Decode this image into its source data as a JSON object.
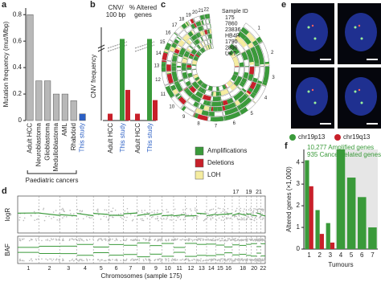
{
  "chart_data": [
    {
      "panel": "a",
      "type": "bar",
      "ylabel": "Mutation frequency (mut/Mbp)",
      "categories": [
        "Adult HCC",
        "Neuroblastoma",
        "Glioblastoma",
        "Medulloblastoma",
        "AML",
        "Rhabdoid",
        "This study"
      ],
      "values": [
        0.8,
        0.3,
        0.3,
        0.2,
        0.2,
        0.15,
        0.05
      ],
      "colors": [
        "#b8b8b8",
        "#b8b8b8",
        "#b8b8b8",
        "#b8b8b8",
        "#b8b8b8",
        "#b8b8b8",
        "#2b5fc4"
      ],
      "ylim": [
        0,
        0.85
      ],
      "yticks": [
        0,
        0.2,
        0.4,
        0.6,
        0.8
      ],
      "bracket_label": "Paediatric cancers"
    },
    {
      "panel": "b",
      "type": "grouped",
      "ylabel": "CNV frequency",
      "ylim": [
        0,
        13
      ],
      "category_colors": [
        "#222222",
        "#2b5fc4"
      ],
      "groups": [
        {
          "header": [
            "CNV/",
            "100 bp"
          ],
          "categories": [
            "Adult HCC",
            "This study"
          ],
          "series": [
            {
              "color": "#3a9a3a",
              "values": [
                null,
                12
              ]
            },
            {
              "color": "#c8202a",
              "values": [
                1,
                4.5
              ]
            }
          ]
        },
        {
          "header": [
            "% Altered",
            "genes"
          ],
          "categories": [
            "Adult HCC",
            "This study"
          ],
          "series": [
            {
              "color": "#3a9a3a",
              "values": [
                null,
                12
              ]
            },
            {
              "color": "#c8202a",
              "values": [
                1,
                3
              ]
            }
          ]
        }
      ]
    },
    {
      "panel": "c",
      "type": "circos",
      "sample_header": "Sample ID",
      "samples": [
        "175",
        "7860",
        "23836",
        "HB4R",
        "1790",
        "2896",
        "UKT"
      ],
      "chromosomes": [
        "1",
        "2",
        "3",
        "4",
        "5",
        "6",
        "7",
        "8",
        "9",
        "10",
        "11",
        "12",
        "13",
        "14",
        "15",
        "16",
        "17",
        "18",
        "19",
        "20",
        "21",
        "22"
      ],
      "legend": [
        {
          "name": "Amplifications",
          "color": "#3a9a3a"
        },
        {
          "name": "Deletions",
          "color": "#c8202a"
        },
        {
          "name": "LOH",
          "color": "#f5eca0"
        }
      ]
    },
    {
      "panel": "d",
      "type": "genome",
      "tracks": [
        "logR",
        "BAF"
      ],
      "chromosomes": [
        "1",
        "2",
        "3",
        "4",
        "5",
        "6",
        "7",
        "8",
        "9",
        "10",
        "11",
        "12",
        "13",
        "14",
        "15",
        "16",
        "17",
        "18",
        "19",
        "20",
        "21",
        "22"
      ],
      "xlabel": "Chromosomes (sample 175)"
    },
    {
      "panel": "e",
      "type": "image",
      "legend": [
        {
          "name": "chr19p13",
          "color": "#3a9a3a"
        },
        {
          "name": "chr19q13",
          "color": "#c8202a"
        }
      ]
    },
    {
      "panel": "f",
      "type": "bar",
      "ylabel": "Altered genes (×1,000)",
      "xlabel": "Tumours",
      "categories": [
        "1",
        "2",
        "3",
        "4",
        "5",
        "6",
        "7"
      ],
      "series": [
        {
          "color": "#3a9a3a",
          "values": [
            4.1,
            1.8,
            1.2,
            4.6,
            3.3,
            2.4,
            1.0
          ]
        },
        {
          "color": "#c8202a",
          "values": [
            2.9,
            0.7,
            0.3,
            null,
            null,
            null,
            null
          ]
        }
      ],
      "ylim": [
        0,
        4.6
      ],
      "yticks": [
        0,
        1,
        2,
        3,
        4
      ],
      "annotations": [
        "10,277 Amplified genes",
        "935 Cancer related genes"
      ]
    }
  ]
}
